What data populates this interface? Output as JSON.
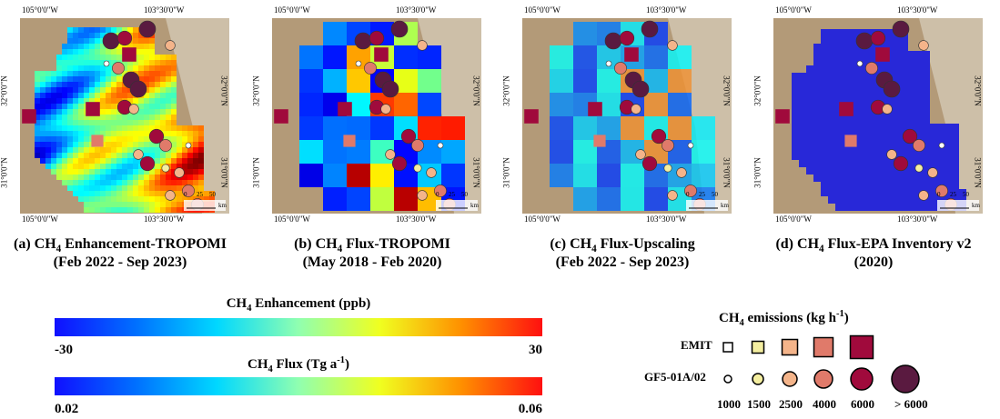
{
  "panels": [
    {
      "label": "(a) CH",
      "sub": "4",
      "title": " Enhancement-TROPOMI",
      "period": "(Feb 2022 - Sep 2023)",
      "lon_labels": [
        "105°0'0\"W",
        "103°30'0\"W"
      ],
      "lat_labels": [
        "32°0'0\"N",
        "31°0'0\"N"
      ],
      "scale_labels": [
        "0",
        "25",
        "50"
      ],
      "scale_unit": "km"
    },
    {
      "label": "(b) CH",
      "sub": "4",
      "title": " Flux-TROPOMI",
      "period": "(May 2018 - Feb 2020)",
      "lon_labels": [
        "105°0'0\"W",
        "103°30'0\"W"
      ],
      "lat_labels": [
        "32°0'0\"N",
        "31°0'0\"N"
      ],
      "scale_labels": [
        "0",
        "25",
        "50"
      ],
      "scale_unit": "km"
    },
    {
      "label": "(c) CH",
      "sub": "4",
      "title": " Flux-Upscaling",
      "period": "(Feb 2022 - Sep 2023)",
      "lon_labels": [
        "105°0'0\"W",
        "103°30'0\"W"
      ],
      "lat_labels": [
        "32°0'0\"N",
        "31°0'0\"N"
      ],
      "scale_labels": [
        "0",
        "25",
        "50"
      ],
      "scale_unit": "km"
    },
    {
      "label": "(d) CH",
      "sub": "4",
      "title": " Flux-EPA Inventory v2",
      "period": "(2020)",
      "lon_labels": [
        "105°0'0\"W",
        "103°30'0\"W"
      ],
      "lat_labels": [
        "32°0'0\"N",
        "31°0'0\"N"
      ],
      "scale_labels": [
        "0",
        "25",
        "50"
      ],
      "scale_unit": "km"
    }
  ],
  "colorbars": [
    {
      "title": [
        "CH",
        "4",
        " Enhancement (ppb)"
      ],
      "ticks": [
        -30,
        30
      ]
    },
    {
      "title": [
        "CH",
        "4",
        " Flux (Tg a",
        "-1",
        ")"
      ],
      "ticks": [
        0.02,
        0.06
      ]
    }
  ],
  "legend": {
    "title": [
      "CH",
      "4",
      " emissions (kg h",
      "-1",
      ")"
    ],
    "rows": [
      "EMIT",
      "GF5-01A/02"
    ],
    "classes": [
      "1000",
      "1500",
      "2500",
      "4000",
      "6000",
      "> 6000"
    ]
  }
}
